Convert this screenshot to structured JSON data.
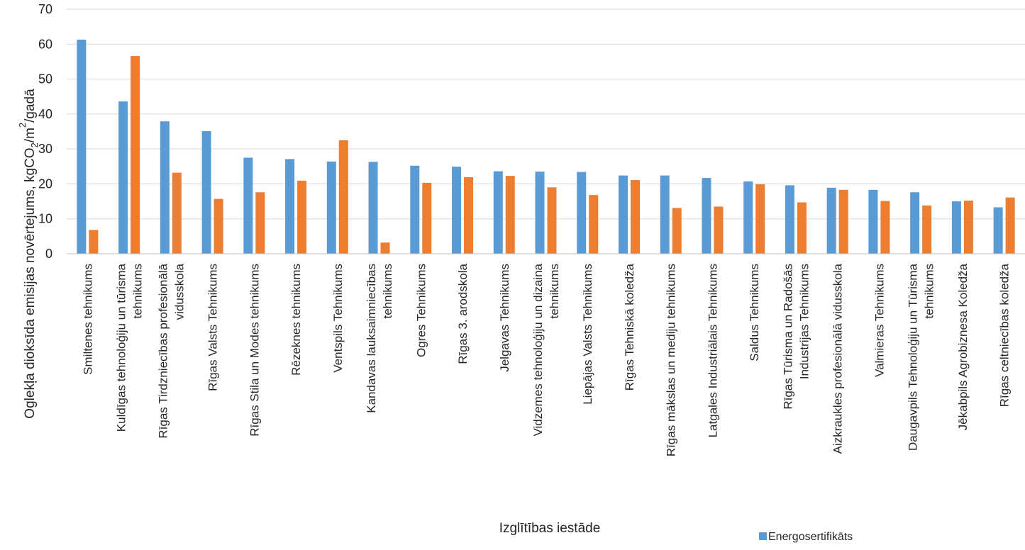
{
  "chart_data": {
    "type": "bar",
    "xlabel": "Izglītības iestāde",
    "ylabel_parts": [
      "Oglekļa dioksīda emisijas novērtejums, kgCO",
      "2",
      "/m",
      "2",
      "/gadā"
    ],
    "ylim": [
      0,
      70
    ],
    "yticks": [
      0,
      10,
      20,
      30,
      40,
      50,
      60,
      70
    ],
    "grid": true,
    "legend_position": "bottom-right",
    "colors": {
      "series_0": "#5B9BD5",
      "series_1": "#ED7D31",
      "grid": "#D9D9D9",
      "axis": "#BFBFBF"
    },
    "categories": [
      [
        "Smiltenes tehnikums"
      ],
      [
        "Kuldīgas tehnoloģiju un tūrisma",
        "tehnikums"
      ],
      [
        "Rīgas Tirdzniecības profesionālā",
        "vidusskola"
      ],
      [
        "Rīgas Valsts Tehnikums"
      ],
      [
        "Rīgas Stila un Modes tehnikums"
      ],
      [
        "Rēzeknes tehnikums"
      ],
      [
        "Ventspils Tehnikums"
      ],
      [
        "Kandavas lauksaimniecības",
        "tehnikums"
      ],
      [
        "Ogres Tehnikums"
      ],
      [
        "Rīgas 3. arodskola"
      ],
      [
        "Jelgavas Tehnikums"
      ],
      [
        "Vidzemes tehnoloģiju un dizaina",
        "tehnikums"
      ],
      [
        "Liepājas Valsts Tehnikums"
      ],
      [
        "Rīgas Tehniskā koledža"
      ],
      [
        "Rīgas mākslas un mediju tehnikums"
      ],
      [
        "Latgales Industriālais Tehnikums"
      ],
      [
        "Saldus Tehnikums"
      ],
      [
        "Rīgas Tūrisma un Radošās",
        "Industrijas Tehnikums"
      ],
      [
        "Aizkraukles profesionālā vidusskola"
      ],
      [
        "Valmieras Tehnikums"
      ],
      [
        "Daugavpils Tehnoloģiju un Tūrisma",
        "tehnikums"
      ],
      [
        "Jēkabpils Agrobiznesa Koledža"
      ],
      [
        "Rīgas celtniecības koledža"
      ]
    ],
    "series": [
      {
        "name": "Energosertifikāts",
        "values": [
          61.3,
          43.6,
          37.9,
          35.1,
          27.5,
          27.1,
          26.4,
          26.3,
          25.2,
          24.9,
          23.6,
          23.5,
          23.4,
          22.4,
          22.4,
          21.7,
          20.7,
          19.6,
          18.9,
          18.3,
          17.6,
          15.0,
          13.3
        ]
      },
      {
        "values": [
          6.8,
          56.6,
          23.2,
          15.7,
          17.6,
          20.9,
          32.5,
          3.2,
          20.3,
          21.9,
          22.3,
          19.0,
          16.8,
          21.1,
          13.1,
          13.5,
          19.9,
          14.7,
          18.3,
          15.1,
          13.8,
          15.2,
          16.1
        ]
      }
    ]
  }
}
